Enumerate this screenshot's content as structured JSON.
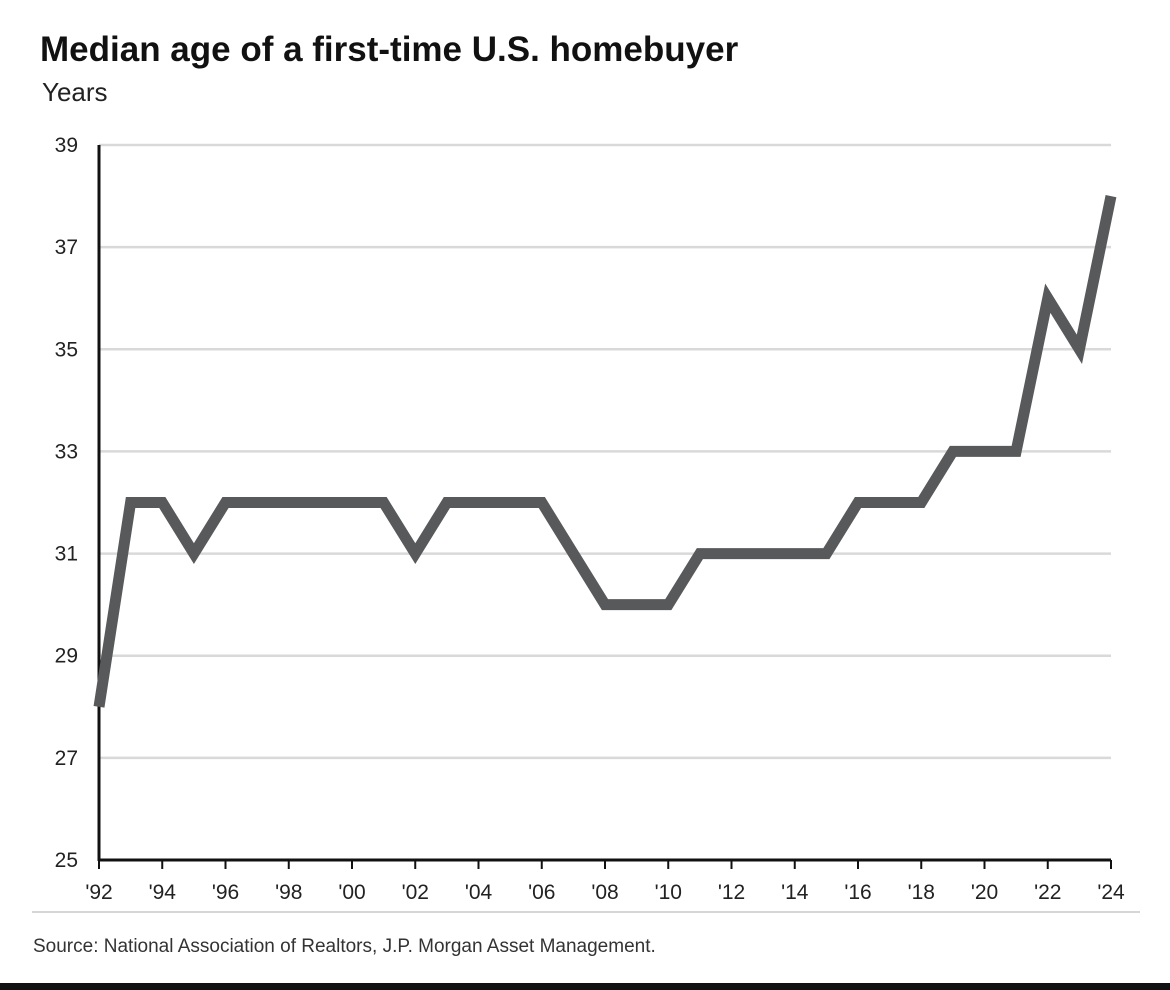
{
  "title": "Median age of a first-time U.S. homebuyer",
  "subtitle": "Years",
  "source": "Source: National Association of Realtors, J.P. Morgan Asset Management.",
  "colors": {
    "line": "#58595b",
    "grid": "#d9d9d9",
    "axis": "#111111",
    "footer_rule": "#111111"
  },
  "chart_data": {
    "type": "line",
    "title": "Median age of a first-time U.S. homebuyer",
    "ylabel": "Years",
    "xlabel": "",
    "ylim": [
      25,
      39
    ],
    "yticks": [
      25,
      27,
      29,
      31,
      33,
      35,
      37,
      39
    ],
    "xlim": [
      1992,
      2024
    ],
    "xticks": [
      1992,
      1994,
      1996,
      1998,
      2000,
      2002,
      2004,
      2006,
      2008,
      2010,
      2012,
      2014,
      2016,
      2018,
      2020,
      2022,
      2024
    ],
    "xtick_labels": [
      "'92",
      "'94",
      "'96",
      "'98",
      "'00",
      "'02",
      "'04",
      "'06",
      "'08",
      "'10",
      "'12",
      "'14",
      "'16",
      "'18",
      "'20",
      "'22",
      "'24"
    ],
    "grid": "horizontal",
    "legend": "none",
    "series": [
      {
        "x": [
          1992,
          1993,
          1994,
          1995,
          1996,
          1997,
          1998,
          1999,
          2000,
          2001,
          2002,
          2003,
          2004,
          2005,
          2006,
          2007,
          2008,
          2009,
          2010,
          2011,
          2012,
          2013,
          2014,
          2015,
          2016,
          2017,
          2018,
          2019,
          2020,
          2021,
          2022,
          2023,
          2024
        ],
        "values": [
          28,
          32,
          32,
          31,
          32,
          32,
          32,
          32,
          32,
          32,
          31,
          32,
          32,
          32,
          32,
          31,
          30,
          30,
          30,
          31,
          31,
          31,
          31,
          31,
          32,
          32,
          32,
          33,
          33,
          33,
          36,
          35,
          38
        ]
      }
    ]
  }
}
